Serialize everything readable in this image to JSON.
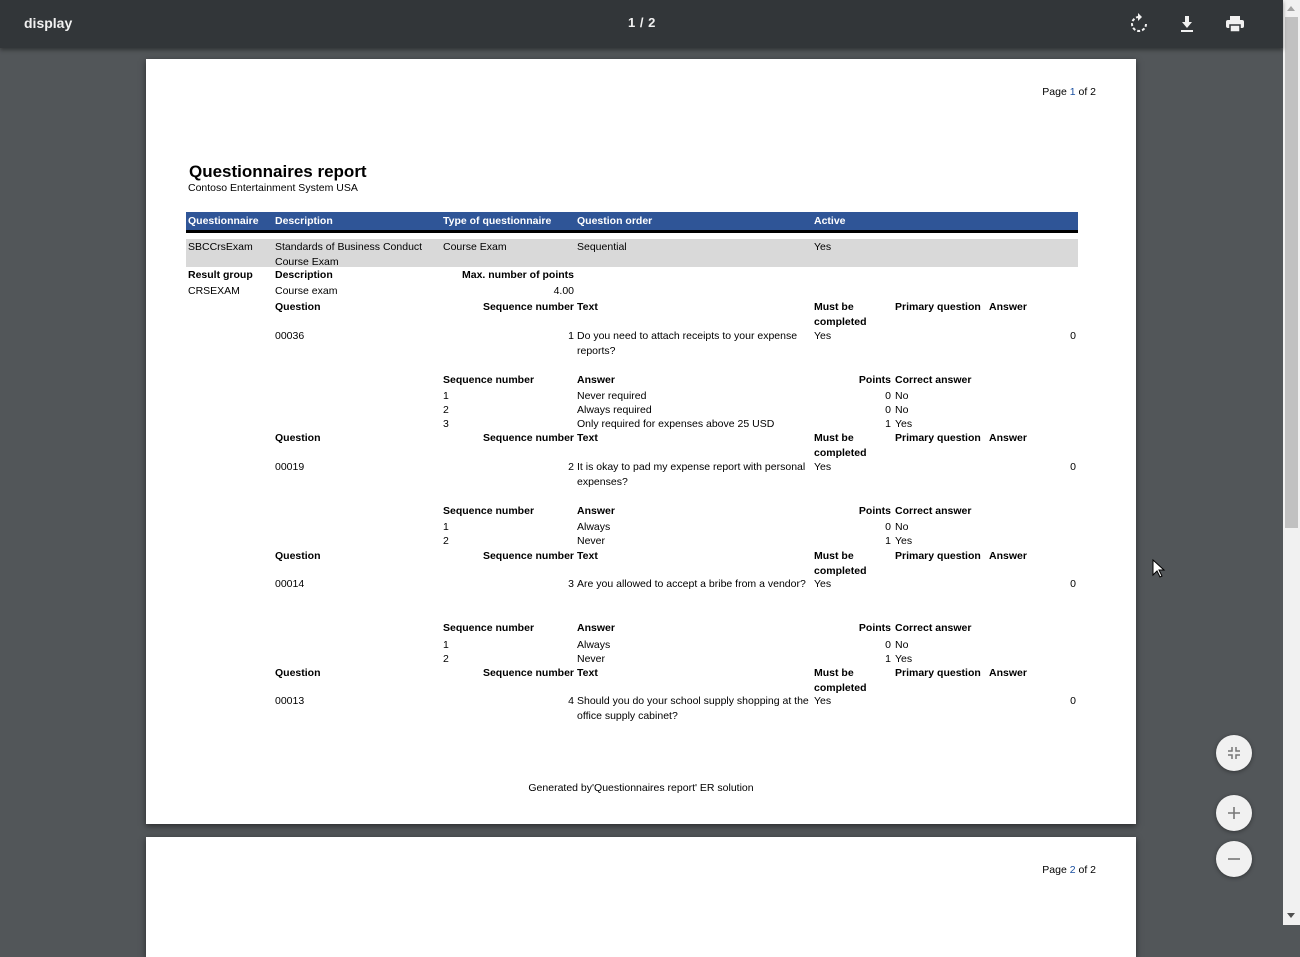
{
  "viewer": {
    "title": "display",
    "page_indicator": "1 / 2",
    "icons": [
      "rotate-icon",
      "download-icon",
      "print-icon",
      "fit-page-icon",
      "zoom-in-icon",
      "zoom-out-icon"
    ]
  },
  "colors": {
    "header_bar": "#2f5597",
    "row_highlight": "#d9d9d9",
    "toolbar": "#323639",
    "background": "#525659"
  },
  "page1": {
    "page_label": {
      "prefix": "Page ",
      "current": "1",
      "suffix": " of 2"
    },
    "title": "Questionnaires report",
    "company": "Contoso Entertainment System USA",
    "header_columns": [
      "Questionnaire",
      "Description",
      "Type of questionnaire",
      "Question order",
      "Active"
    ],
    "questionnaire": {
      "id": "SBCCrsExam",
      "description": "Standards of Business Conduct Course Exam",
      "type": "Course Exam",
      "order": "Sequential",
      "active": "Yes"
    },
    "result_group_labels": {
      "group": "Result group",
      "description": "Description",
      "max_points": "Max. number of points"
    },
    "result_group": {
      "group": "CRSEXAM",
      "description": "Course exam",
      "max_points": "4.00"
    },
    "question_labels": {
      "question": "Question",
      "sequence": "Sequence number",
      "text": "Text",
      "must_be": "Must be",
      "completed": "completed",
      "primary": "Primary question",
      "answer": "Answer"
    },
    "answer_labels": {
      "sequence": "Sequence number",
      "answer": "Answer",
      "points": "Points",
      "correct": "Correct answer"
    },
    "questions": [
      {
        "id": "00036",
        "seq": "1",
        "text": "Do you need to attach receipts to your expense reports?",
        "must": "Yes",
        "answer": "0",
        "answers": [
          {
            "seq": "1",
            "text": "Never required",
            "points": "0",
            "correct": "No"
          },
          {
            "seq": "2",
            "text": "Always required",
            "points": "0",
            "correct": "No"
          },
          {
            "seq": "3",
            "text": "Only required for expenses above 25 USD",
            "points": "1",
            "correct": "Yes"
          }
        ]
      },
      {
        "id": "00019",
        "seq": "2",
        "text": "It is okay to pad my expense report with personal expenses?",
        "must": "Yes",
        "answer": "0",
        "answers": [
          {
            "seq": "1",
            "text": "Always",
            "points": "0",
            "correct": "No"
          },
          {
            "seq": "2",
            "text": "Never",
            "points": "1",
            "correct": "Yes"
          }
        ]
      },
      {
        "id": "00014",
        "seq": "3",
        "text": "Are you allowed to accept a bribe from a vendor?",
        "must": "Yes",
        "answer": "0",
        "answers": [
          {
            "seq": "1",
            "text": "Always",
            "points": "0",
            "correct": "No"
          },
          {
            "seq": "2",
            "text": "Never",
            "points": "1",
            "correct": "Yes"
          }
        ]
      },
      {
        "id": "00013",
        "seq": "4",
        "text": "Should you do your school supply shopping at the office supply cabinet?",
        "must": "Yes",
        "answer": "0",
        "answers": []
      }
    ],
    "footer": "Generated by'Questionnaires report' ER solution"
  },
  "page2": {
    "page_label": {
      "prefix": "Page ",
      "current": "2",
      "suffix": " of 2"
    }
  }
}
